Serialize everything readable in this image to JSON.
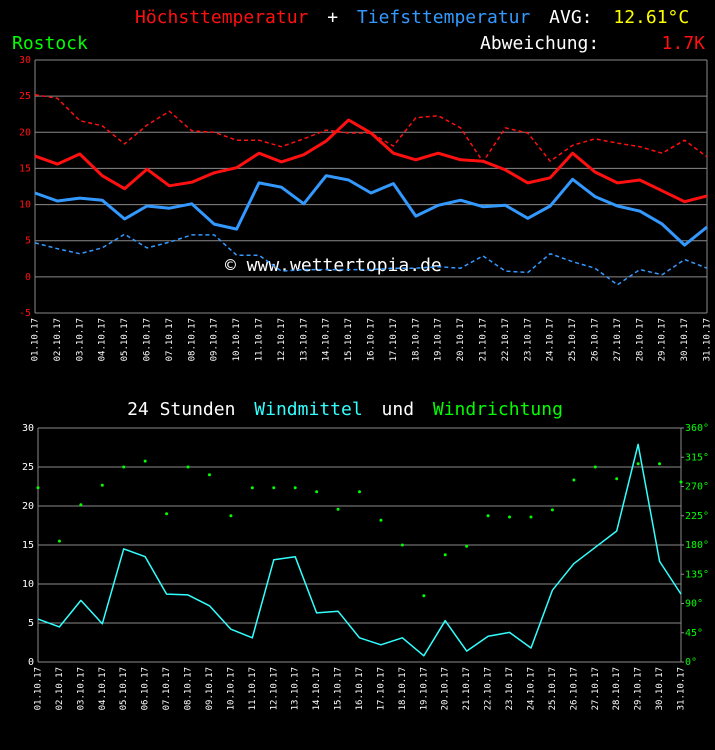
{
  "chart_data": [
    {
      "type": "line",
      "separator": "+",
      "avg_label": "AVG:",
      "avg": "12.61°C",
      "location": "Rostock",
      "deviation_label": "Abweichung:",
      "deviation": "1.7K",
      "watermark": "© www.wettertopia.de",
      "categories": [
        "01.10.17",
        "02.10.17",
        "03.10.17",
        "04.10.17",
        "05.10.17",
        "06.10.17",
        "07.10.17",
        "08.10.17",
        "09.10.17",
        "10.10.17",
        "11.10.17",
        "12.10.17",
        "13.10.17",
        "14.10.17",
        "15.10.17",
        "16.10.17",
        "17.10.17",
        "18.10.17",
        "19.10.17",
        "20.10.17",
        "21.10.17",
        "22.10.17",
        "23.10.17",
        "24.10.17",
        "25.10.17",
        "26.10.17",
        "27.10.17",
        "28.10.17",
        "29.10.17",
        "30.10.17",
        "31.10.17"
      ],
      "series": [
        {
          "name": "Höchsttemperatur",
          "color": "#ff1010",
          "width": 3,
          "values": [
            16.7,
            15.6,
            17,
            14,
            12.2,
            14.9,
            12.6,
            13.1,
            14.4,
            15.1,
            17.1,
            15.9,
            16.9,
            18.8,
            21.7,
            19.9,
            17.1,
            16.2,
            17.1,
            16.2,
            16,
            14.8,
            13,
            13.7,
            17.1,
            14.5,
            13,
            13.4,
            11.9,
            10.4,
            11.2
          ]
        },
        {
          "color": "#ff1010",
          "dashed": true,
          "width": 1.5,
          "values": [
            25.2,
            24.7,
            21.6,
            20.9,
            18.4,
            21,
            22.9,
            20.2,
            20,
            18.9,
            18.9,
            18,
            19.1,
            20.3,
            19.9,
            19.9,
            18.1,
            22,
            22.3,
            20.6,
            15.9,
            20.6,
            19.9,
            16,
            18.2,
            19.1,
            18.5,
            18,
            17.1,
            18.9,
            16.6
          ]
        },
        {
          "name": "Tiefsttemperatur",
          "color": "#3399ff",
          "width": 3,
          "values": [
            11.6,
            10.5,
            10.9,
            10.6,
            8,
            9.8,
            9.5,
            10.1,
            7.3,
            6.6,
            13,
            12.4,
            10.1,
            14,
            13.4,
            11.6,
            12.9,
            8.4,
            9.9,
            10.6,
            9.7,
            9.9,
            8.1,
            9.8,
            13.5,
            11.1,
            9.8,
            9.1,
            7.3,
            4.4,
            6.9
          ]
        },
        {
          "color": "#3399ff",
          "dashed": true,
          "width": 1.5,
          "values": [
            4.7,
            3.9,
            3.2,
            4,
            5.9,
            4,
            4.8,
            5.8,
            5.8,
            3,
            3,
            0.8,
            1,
            1,
            1,
            1,
            1.2,
            1.2,
            1.4,
            1.2,
            2.9,
            0.8,
            0.6,
            3.2,
            2.1,
            1.2,
            -1.1,
            1,
            0.3,
            2.4,
            1.2
          ]
        }
      ],
      "ylim": [
        -5,
        30
      ],
      "yticks": [
        -5,
        0,
        5,
        10,
        15,
        20,
        25,
        30
      ],
      "grid": true
    },
    {
      "type": "line",
      "title_prefix": "24 Stunden",
      "title_joiner": "und",
      "categories": [
        "01.10.17",
        "02.10.17",
        "03.10.17",
        "04.10.17",
        "05.10.17",
        "06.10.17",
        "07.10.17",
        "08.10.17",
        "09.10.17",
        "10.10.17",
        "11.10.17",
        "12.10.17",
        "13.10.17",
        "14.10.17",
        "15.10.17",
        "16.10.17",
        "17.10.17",
        "18.10.17",
        "19.10.17",
        "20.10.17",
        "21.10.17",
        "22.10.17",
        "23.10.17",
        "24.10.17",
        "25.10.17",
        "26.10.17",
        "27.10.17",
        "28.10.17",
        "29.10.17",
        "30.10.17",
        "31.10.17"
      ],
      "series": [
        {
          "name": "Windmittel",
          "color": "#33ffff",
          "width": 1.5,
          "values": [
            5.5,
            4.5,
            7.9,
            4.9,
            14.5,
            13.5,
            8.7,
            8.6,
            7.2,
            4.2,
            3.1,
            13.1,
            13.5,
            6.3,
            6.5,
            3.1,
            2.2,
            3.1,
            0.8,
            5.3,
            1.4,
            3.3,
            3.8,
            1.8,
            9.2,
            12.6,
            14.7,
            16.8,
            27.9,
            12.9,
            8.7
          ]
        },
        {
          "name": "Windrichtung",
          "color": "#00ff00",
          "axis": "y2",
          "marker": "dot",
          "values": [
            268,
            186,
            242,
            272,
            300,
            309,
            228,
            300,
            288,
            225,
            268,
            268,
            268,
            262,
            235,
            262,
            218,
            180,
            102,
            165,
            178,
            225,
            223,
            223,
            234,
            280,
            300,
            282,
            305,
            305,
            277
          ]
        }
      ],
      "ylim": [
        0,
        30
      ],
      "yticks": [
        0,
        5,
        10,
        15,
        20,
        25,
        30
      ],
      "y2lim": [
        0,
        360
      ],
      "y2ticks": [
        {
          "value": 0,
          "label": "0°"
        },
        {
          "value": 45,
          "label": "45°"
        },
        {
          "value": 90,
          "label": "90°"
        },
        {
          "value": 135,
          "label": "135°"
        },
        {
          "value": 180,
          "label": "180°"
        },
        {
          "value": 225,
          "label": "225°"
        },
        {
          "value": 270,
          "label": "270°"
        },
        {
          "value": 315,
          "label": "315°"
        },
        {
          "value": 360,
          "label": "360°"
        }
      ],
      "grid": true
    }
  ]
}
